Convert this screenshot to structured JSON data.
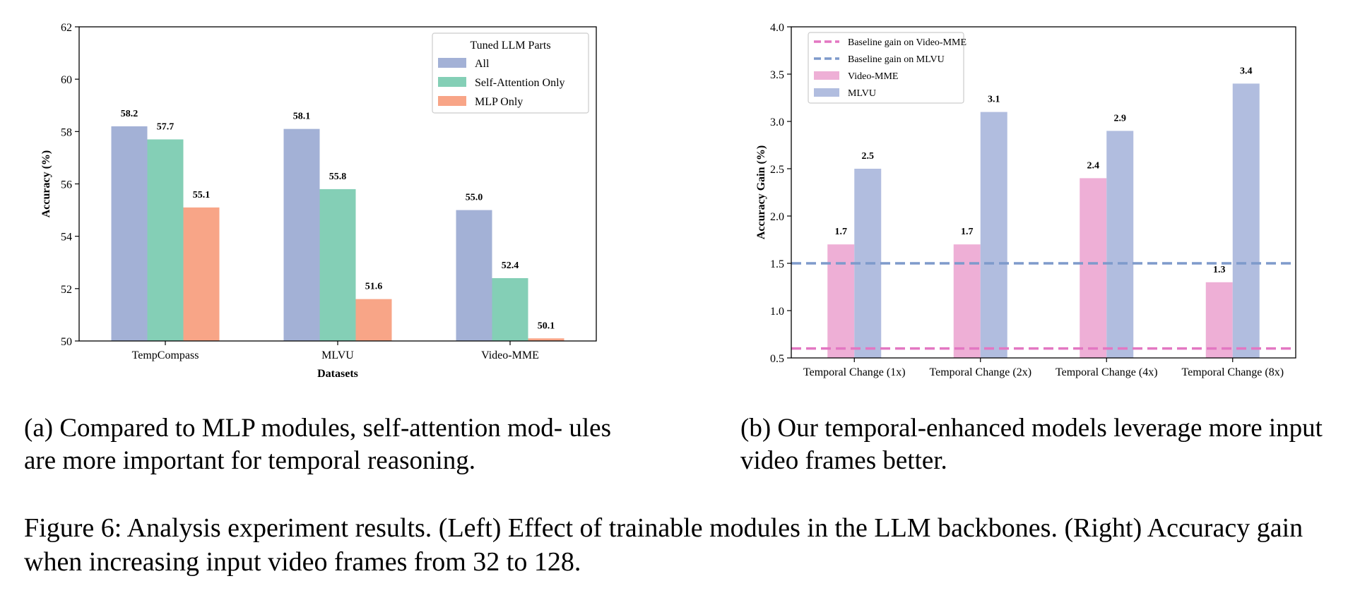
{
  "chart_data": [
    {
      "type": "bar",
      "title": "",
      "xlabel": "Datasets",
      "ylabel": "Accuracy (%)",
      "categories": [
        "TempCompass",
        "MLVU",
        "Video-MME"
      ],
      "series": [
        {
          "name": "All",
          "values": [
            58.2,
            58.1,
            55.0
          ],
          "labels": [
            "58.2",
            "58.1",
            "55.0"
          ],
          "color": "#a3b1d6"
        },
        {
          "name": "Self-Attention Only",
          "values": [
            57.7,
            55.8,
            52.4
          ],
          "labels": [
            "57.7",
            "55.8",
            "52.4"
          ],
          "color": "#84cfb6"
        },
        {
          "name": "MLP Only",
          "values": [
            55.1,
            51.6,
            50.1
          ],
          "labels": [
            "55.1",
            "51.6",
            "50.1"
          ],
          "color": "#f8a587"
        }
      ],
      "ylim": [
        50,
        62
      ],
      "yticks": [
        "50",
        "52",
        "54",
        "56",
        "58",
        "60",
        "62"
      ],
      "legend": {
        "title": "Tuned LLM Parts",
        "position": "top-right"
      },
      "grid": false
    },
    {
      "type": "bar",
      "title": "",
      "xlabel": "",
      "ylabel": "Accuracy Gain (%)",
      "categories": [
        "Temporal Change (1x)",
        "Temporal Change (2x)",
        "Temporal Change (4x)",
        "Temporal Change (8x)"
      ],
      "series": [
        {
          "name": "Video-MME",
          "values": [
            1.7,
            1.7,
            2.4,
            1.3
          ],
          "labels": [
            "1.7",
            "1.7",
            "2.4",
            "1.3"
          ],
          "color": "#eeafd6"
        },
        {
          "name": "MLVU",
          "values": [
            2.5,
            3.1,
            2.9,
            3.4
          ],
          "labels": [
            "2.5",
            "3.1",
            "2.9",
            "3.4"
          ],
          "color": "#b1bddf"
        }
      ],
      "reference_lines": [
        {
          "name": "Baseline gain on Video-MME",
          "value": 0.6,
          "color": "#e377c2",
          "style": "dashed"
        },
        {
          "name": "Baseline gain on MLVU",
          "value": 1.5,
          "color": "#7e9acb",
          "style": "dashed"
        }
      ],
      "ylim": [
        0.5,
        4.0
      ],
      "yticks": [
        "0.5",
        "1.0",
        "1.5",
        "2.0",
        "2.5",
        "3.0",
        "3.5",
        "4.0"
      ],
      "legend": {
        "position": "top-left"
      },
      "grid": false
    }
  ],
  "captions": {
    "left": "(a) Compared to MLP modules, self-attention mod- ules are more important for temporal reasoning.",
    "right": "(b) Our temporal-enhanced models leverage more input video frames better.",
    "figure": "Figure 6: Analysis experiment results. (Left) Effect of trainable modules in the LLM backbones. (Right) Accuracy gain when increasing input video frames from 32 to 128."
  }
}
